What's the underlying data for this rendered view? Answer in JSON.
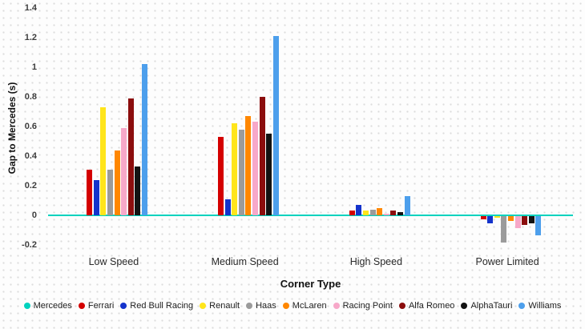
{
  "chart_data": {
    "type": "bar",
    "title": "",
    "xlabel": "Corner Type",
    "ylabel": "Gap to Mercedes (s)",
    "categories": [
      "Low Speed",
      "Medium Speed",
      "High Speed",
      "Power Limited"
    ],
    "ylim": [
      -0.2,
      1.4
    ],
    "yticks": [
      -0.2,
      0,
      0.2,
      0.4,
      0.6,
      0.8,
      1,
      1.2,
      1.4
    ],
    "grid": "dotted-background",
    "legend_position": "bottom",
    "baseline_color": "#00d2be",
    "series": [
      {
        "name": "Mercedes",
        "color": "#00d2be",
        "values": [
          0,
          0,
          0,
          0
        ]
      },
      {
        "name": "Ferrari",
        "color": "#d40000",
        "values": [
          0.31,
          0.53,
          0.03,
          -0.02
        ]
      },
      {
        "name": "Red Bull Racing",
        "color": "#1433cc",
        "values": [
          0.24,
          0.11,
          0.07,
          -0.05
        ]
      },
      {
        "name": "Renault",
        "color": "#ffe51b",
        "values": [
          0.73,
          0.62,
          0.03,
          -0.01
        ]
      },
      {
        "name": "Haas",
        "color": "#9b9b9b",
        "values": [
          0.31,
          0.58,
          0.04,
          -0.18
        ]
      },
      {
        "name": "McLaren",
        "color": "#ff8700",
        "values": [
          0.44,
          0.67,
          0.05,
          -0.03
        ]
      },
      {
        "name": "Racing Point",
        "color": "#f7a8c9",
        "values": [
          0.59,
          0.63,
          0.01,
          -0.08
        ]
      },
      {
        "name": "Alfa Romeo",
        "color": "#8b0d0d",
        "values": [
          0.79,
          0.8,
          0.03,
          -0.06
        ]
      },
      {
        "name": "AlphaTauri",
        "color": "#131313",
        "values": [
          0.33,
          0.55,
          0.02,
          -0.05
        ]
      },
      {
        "name": "Williams",
        "color": "#4d9fec",
        "values": [
          1.02,
          1.21,
          0.13,
          -0.13
        ]
      }
    ]
  }
}
